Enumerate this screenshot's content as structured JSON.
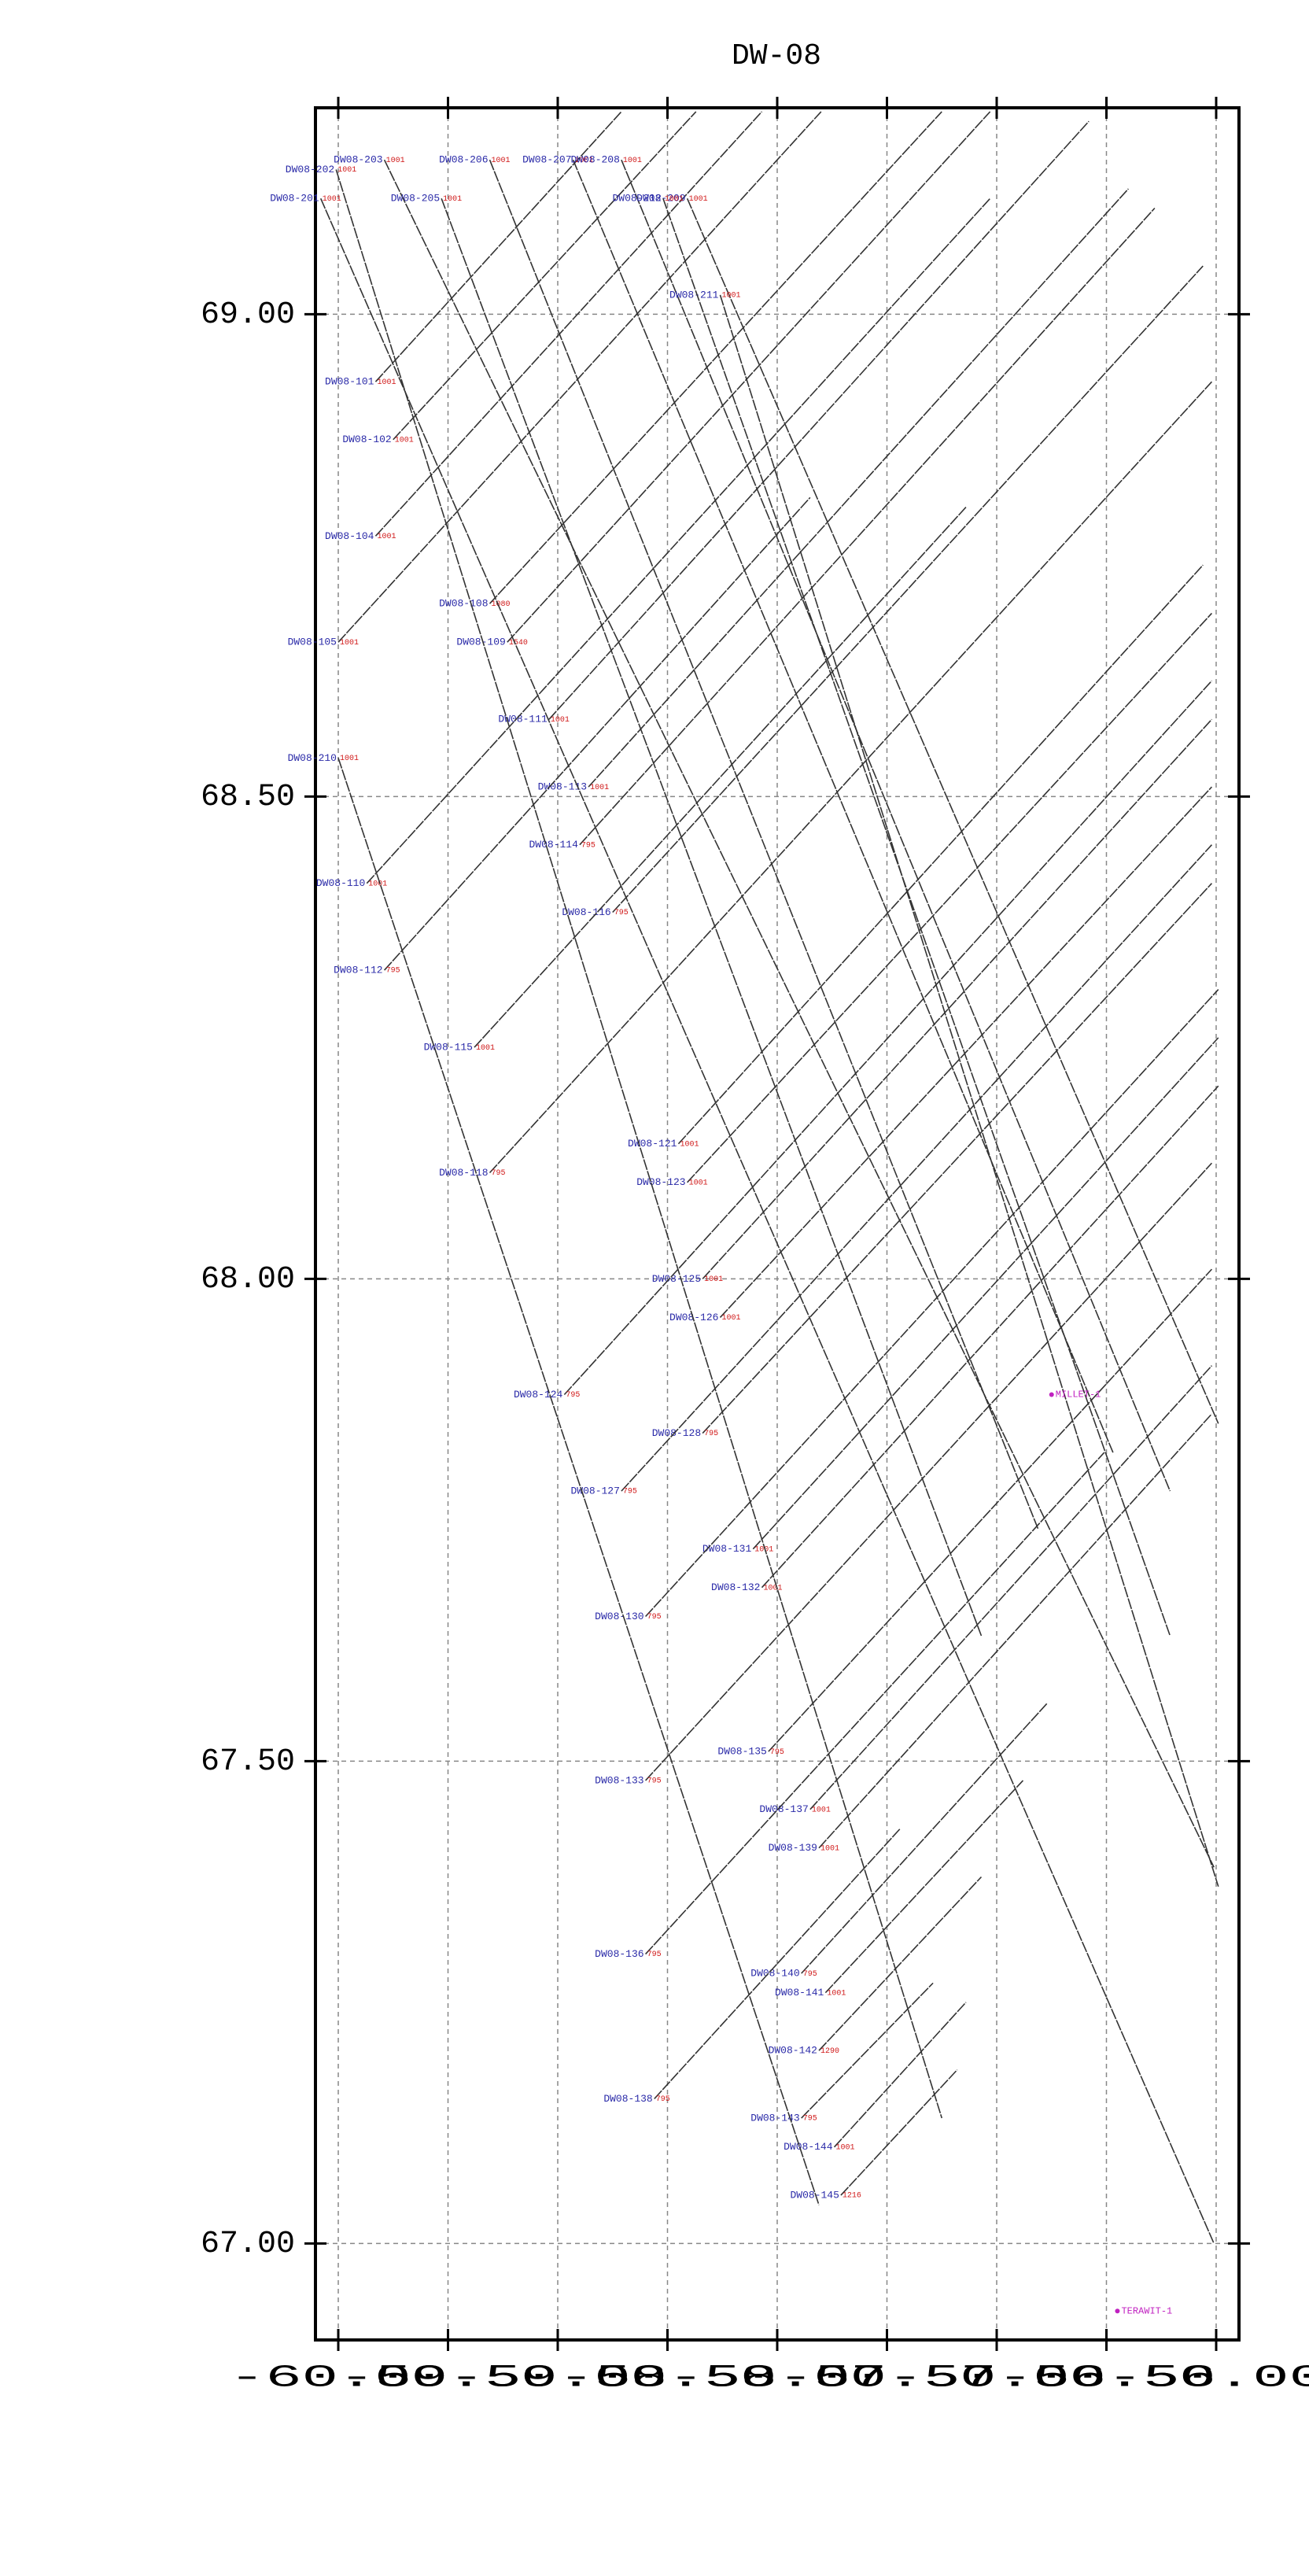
{
  "chart_data": {
    "type": "lines",
    "title": "DW-08",
    "xlim": [
      -60.104,
      -55.896
    ],
    "ylim": [
      66.9,
      69.214
    ],
    "xticks": [
      {
        "value": -60,
        "label": "-60.00"
      },
      {
        "value": -59.5,
        "label": "-59.50"
      },
      {
        "value": -59,
        "label": "-59.00"
      },
      {
        "value": -58.5,
        "label": "-58.50"
      },
      {
        "value": -58,
        "label": "-58.00"
      },
      {
        "value": -57.5,
        "label": "-57.50"
      },
      {
        "value": -57,
        "label": "-57.00"
      },
      {
        "value": -56.5,
        "label": "-56.50"
      },
      {
        "value": -56,
        "label": "-56.00"
      }
    ],
    "yticks": [
      {
        "value": 67,
        "label": "67.00"
      },
      {
        "value": 67.5,
        "label": "67.50"
      },
      {
        "value": 68,
        "label": "68.00"
      },
      {
        "value": 68.5,
        "label": "68.50"
      },
      {
        "value": 69,
        "label": "69.00"
      }
    ],
    "grid": true,
    "line_color": "#333333",
    "lines": [
      {
        "name": "DW08-101",
        "shot": "1001",
        "x": [
          -59.83,
          -58.71
        ],
        "y": [
          68.93,
          69.21
        ]
      },
      {
        "name": "DW08-102",
        "shot": "1001",
        "x": [
          -59.75,
          -58.37
        ],
        "y": [
          68.87,
          69.21
        ]
      },
      {
        "name": "DW08-104",
        "shot": "1001",
        "x": [
          -59.83,
          -58.07
        ],
        "y": [
          68.77,
          69.21
        ]
      },
      {
        "name": "DW08-105",
        "shot": "1001",
        "x": [
          -60.0,
          -57.8
        ],
        "y": [
          68.66,
          69.21
        ]
      },
      {
        "name": "DW08-108",
        "shot": "1080",
        "x": [
          -59.31,
          -57.25
        ],
        "y": [
          68.7,
          69.21
        ]
      },
      {
        "name": "DW08-109",
        "shot": "1540",
        "x": [
          -59.23,
          -57.03
        ],
        "y": [
          68.66,
          69.21
        ]
      },
      {
        "name": "DW08-111",
        "shot": "1001",
        "x": [
          -59.04,
          -56.58
        ],
        "y": [
          68.58,
          69.2
        ]
      },
      {
        "name": "DW08-113",
        "shot": "1001",
        "x": [
          -58.86,
          -56.4
        ],
        "y": [
          68.51,
          69.13
        ]
      },
      {
        "name": "DW08-110",
        "shot": "1001",
        "x": [
          -59.87,
          -57.03
        ],
        "y": [
          68.41,
          69.12
        ]
      },
      {
        "name": "DW08-114",
        "shot": "795",
        "x": [
          -58.9,
          -56.28
        ],
        "y": [
          68.45,
          69.11
        ]
      },
      {
        "name": "DW08-116",
        "shot": "795",
        "x": [
          -58.75,
          -56.06
        ],
        "y": [
          68.38,
          69.05
        ]
      },
      {
        "name": "DW08-112",
        "shot": "795",
        "x": [
          -59.79,
          -57.85
        ],
        "y": [
          68.32,
          68.81
        ]
      },
      {
        "name": "DW08-115",
        "shot": "1001",
        "x": [
          -59.38,
          -57.14
        ],
        "y": [
          68.24,
          68.8
        ]
      },
      {
        "name": "DW08-118",
        "shot": "795",
        "x": [
          -59.31,
          -56.02
        ],
        "y": [
          68.11,
          68.93
        ]
      },
      {
        "name": "DW08-121",
        "shot": "1001",
        "x": [
          -58.45,
          -56.06
        ],
        "y": [
          68.14,
          68.74
        ]
      },
      {
        "name": "DW08-123",
        "shot": "1001",
        "x": [
          -58.41,
          -56.02
        ],
        "y": [
          68.1,
          68.69
        ]
      },
      {
        "name": "DW08-125",
        "shot": "1001",
        "x": [
          -58.34,
          -56.02
        ],
        "y": [
          68.0,
          68.58
        ]
      },
      {
        "name": "DW08-124",
        "shot": "795",
        "x": [
          -58.97,
          -56.02
        ],
        "y": [
          67.88,
          68.62
        ]
      },
      {
        "name": "DW08-126",
        "shot": "1001",
        "x": [
          -58.26,
          -56.02
        ],
        "y": [
          67.96,
          68.51
        ]
      },
      {
        "name": "DW08-128",
        "shot": "795",
        "x": [
          -58.34,
          -56.02
        ],
        "y": [
          67.84,
          68.41
        ]
      },
      {
        "name": "DW08-127",
        "shot": "795",
        "x": [
          -58.71,
          -56.02
        ],
        "y": [
          67.78,
          68.45
        ]
      },
      {
        "name": "DW08-131",
        "shot": "1001",
        "x": [
          -58.11,
          -55.99
        ],
        "y": [
          67.72,
          68.25
        ]
      },
      {
        "name": "DW08-130",
        "shot": "795",
        "x": [
          -58.6,
          -55.99
        ],
        "y": [
          67.65,
          68.3
        ]
      },
      {
        "name": "DW08-132",
        "shot": "1001",
        "x": [
          -58.07,
          -55.99
        ],
        "y": [
          67.68,
          68.2
        ]
      },
      {
        "name": "DW08-135",
        "shot": "795",
        "x": [
          -58.04,
          -56.02
        ],
        "y": [
          67.51,
          68.01
        ]
      },
      {
        "name": "DW08-133",
        "shot": "795",
        "x": [
          -58.6,
          -56.02
        ],
        "y": [
          67.48,
          68.12
        ]
      },
      {
        "name": "DW08-137",
        "shot": "1001",
        "x": [
          -57.85,
          -56.02
        ],
        "y": [
          67.45,
          67.91
        ]
      },
      {
        "name": "DW08-139",
        "shot": "1001",
        "x": [
          -57.81,
          -56.02
        ],
        "y": [
          67.41,
          67.86
        ]
      },
      {
        "name": "DW08-136",
        "shot": "795",
        "x": [
          -58.6,
          -56.51
        ],
        "y": [
          67.3,
          67.82
        ]
      },
      {
        "name": "DW08-140",
        "shot": "795",
        "x": [
          -57.89,
          -56.77
        ],
        "y": [
          67.28,
          67.56
        ]
      },
      {
        "name": "DW08-141",
        "shot": "1001",
        "x": [
          -57.78,
          -56.88
        ],
        "y": [
          67.26,
          67.48
        ]
      },
      {
        "name": "DW08-142",
        "shot": "1290",
        "x": [
          -57.81,
          -57.07
        ],
        "y": [
          67.2,
          67.38
        ]
      },
      {
        "name": "DW08-138",
        "shot": "795",
        "x": [
          -58.56,
          -57.44
        ],
        "y": [
          67.15,
          67.43
        ]
      },
      {
        "name": "DW08-143",
        "shot": "795",
        "x": [
          -57.89,
          -57.29
        ],
        "y": [
          67.13,
          67.27
        ]
      },
      {
        "name": "DW08-144",
        "shot": "1001",
        "x": [
          -57.74,
          -57.14
        ],
        "y": [
          67.1,
          67.25
        ]
      },
      {
        "name": "DW08-145",
        "shot": "1216",
        "x": [
          -57.71,
          -57.18
        ],
        "y": [
          67.05,
          67.18
        ]
      },
      {
        "name": "DW08-201",
        "shot": "1001",
        "x": [
          -60.08,
          -56.01
        ],
        "y": [
          69.12,
          67.0
        ]
      },
      {
        "name": "DW08-202",
        "shot": "1001",
        "x": [
          -60.01,
          -57.25
        ],
        "y": [
          69.15,
          67.13
        ]
      },
      {
        "name": "DW08-203",
        "shot": "1001",
        "x": [
          -59.79,
          -56.01
        ],
        "y": [
          69.16,
          67.39
        ]
      },
      {
        "name": "DW08-205",
        "shot": "1001",
        "x": [
          -59.53,
          -57.07
        ],
        "y": [
          69.12,
          67.63
        ]
      },
      {
        "name": "DW08-206",
        "shot": "1001",
        "x": [
          -59.31,
          -56.81
        ],
        "y": [
          69.16,
          67.74
        ]
      },
      {
        "name": "DW08-207",
        "shot": "1001",
        "x": [
          -58.93,
          -56.47
        ],
        "y": [
          69.16,
          67.82
        ]
      },
      {
        "name": "DW08-208",
        "shot": "1001",
        "x": [
          -58.71,
          -56.21
        ],
        "y": [
          69.16,
          67.78
        ]
      },
      {
        "name": "DW08-209",
        "shot": "1001",
        "x": [
          -58.41,
          -55.99
        ],
        "y": [
          69.12,
          67.85
        ]
      },
      {
        "name": "DW08-210",
        "shot": "1001",
        "x": [
          -60.0,
          -57.81
        ],
        "y": [
          68.54,
          67.04
        ]
      },
      {
        "name": "DW08-211",
        "shot": "1001",
        "x": [
          -58.26,
          -55.99
        ],
        "y": [
          69.02,
          67.37
        ]
      },
      {
        "name": "DW08-212",
        "shot": "1001",
        "x": [
          -58.52,
          -56.21
        ],
        "y": [
          69.12,
          67.63
        ]
      }
    ],
    "wells": [
      {
        "name": "MILLET-1",
        "x": -56.75,
        "y": 67.88
      },
      {
        "name": "TERAWIT-1",
        "x": -56.45,
        "y": 66.93
      }
    ]
  }
}
